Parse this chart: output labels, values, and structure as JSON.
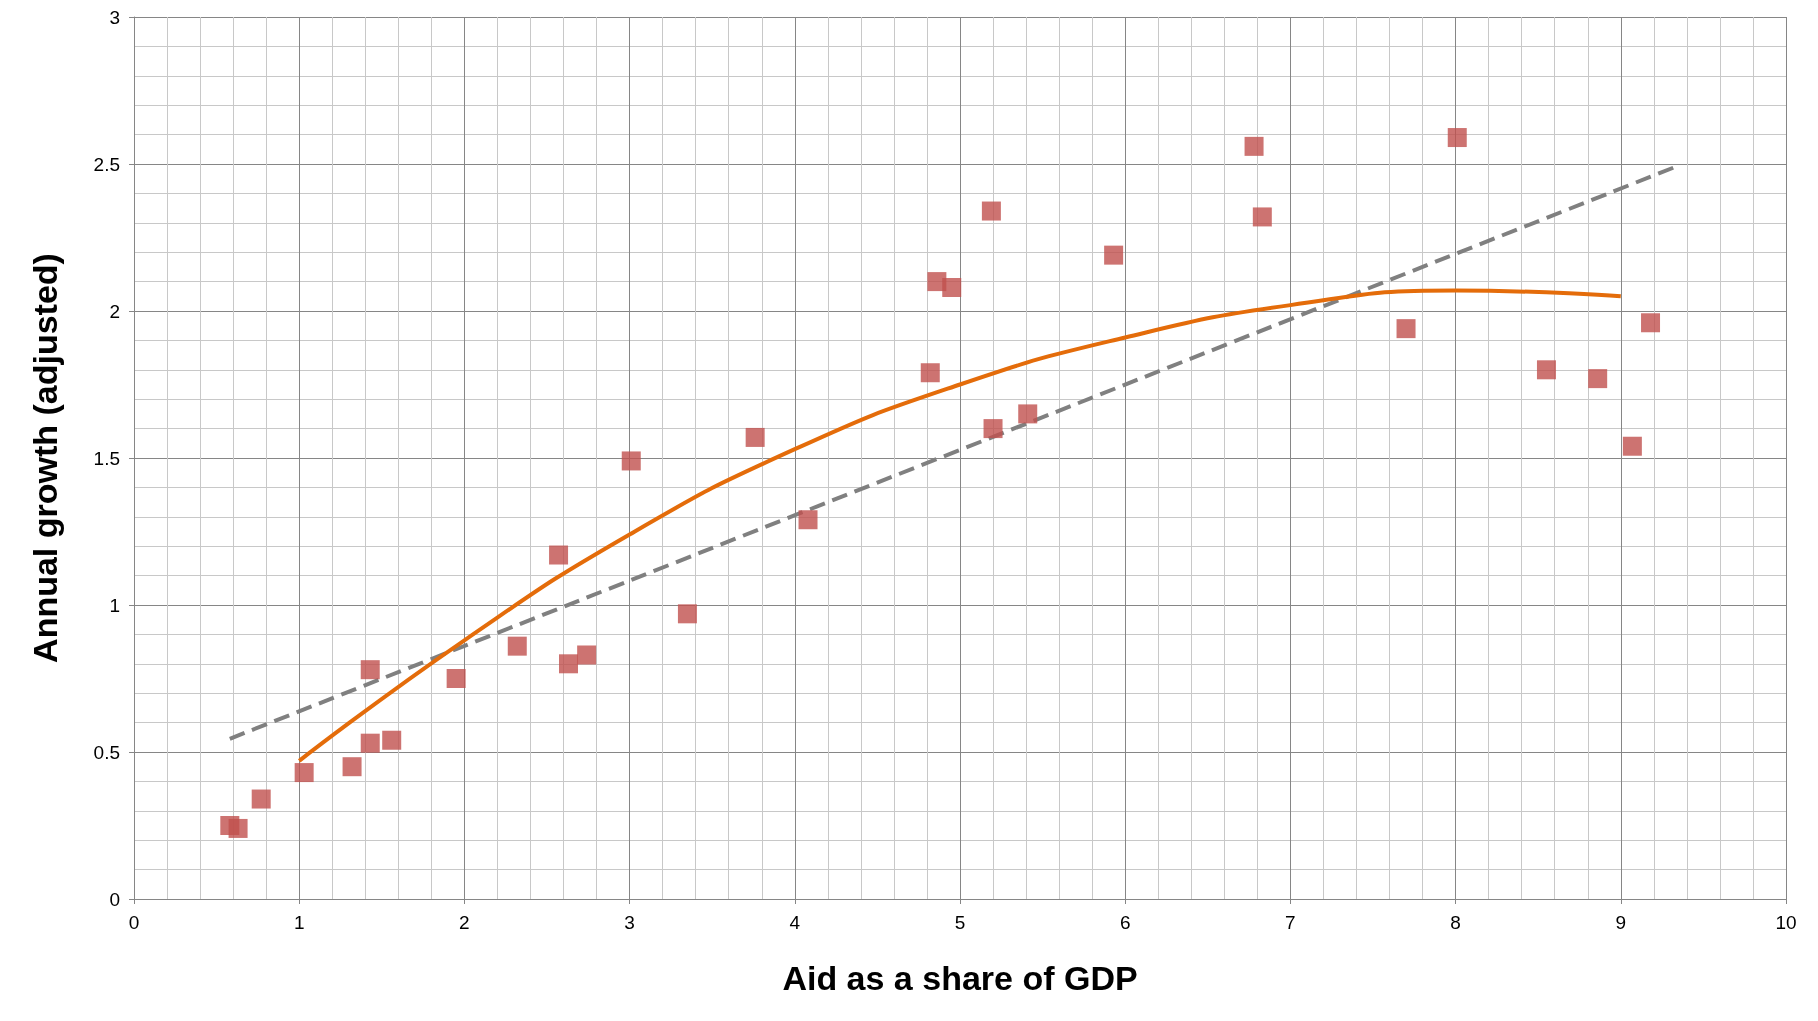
{
  "chart_data": {
    "type": "scatter",
    "xlabel": "Aid as a share of GDP",
    "ylabel": "Annual growth (adjusted)",
    "xlim": [
      0,
      10
    ],
    "xticks": [
      0,
      1,
      2,
      3,
      4,
      5,
      6,
      7,
      8,
      9,
      10
    ],
    "ylim": [
      0,
      3
    ],
    "yticks": [
      0,
      0.5,
      1,
      1.5,
      2,
      2.5,
      3
    ],
    "grid": true,
    "series": [
      {
        "marker": "square",
        "color": "#c0504d",
        "x": [
          0.58,
          0.63,
          0.77,
          1.03,
          1.32,
          1.43,
          1.43,
          1.56,
          1.95,
          2.32,
          2.57,
          2.63,
          2.74,
          3.01,
          3.35,
          3.76,
          4.08,
          4.82,
          4.86,
          4.95,
          5.19,
          5.2,
          5.41,
          5.93,
          6.78,
          6.83,
          7.7,
          8.01,
          8.55,
          8.86,
          9.07,
          9.18
        ],
        "values": [
          0.25,
          0.24,
          0.34,
          0.43,
          0.45,
          0.78,
          0.53,
          0.54,
          0.75,
          0.86,
          1.17,
          0.8,
          0.83,
          1.49,
          0.97,
          1.57,
          1.29,
          1.79,
          2.1,
          2.08,
          2.34,
          1.6,
          1.65,
          2.19,
          2.56,
          2.32,
          1.94,
          2.59,
          1.8,
          1.77,
          1.54,
          1.96
        ]
      },
      {
        "type": "line",
        "marker": "none",
        "line_style": "dashed",
        "color": "#808080",
        "x": [
          0.58,
          9.33
        ],
        "values": [
          0.545,
          2.49
        ]
      },
      {
        "type": "line",
        "marker": "none",
        "line_style": "solid",
        "color": "#e46c0a",
        "x": [
          1,
          2,
          3,
          4,
          5,
          6,
          7,
          8,
          9
        ],
        "values": [
          0.47,
          0.88,
          1.24,
          1.53,
          1.75,
          1.91,
          2.02,
          2.07,
          2.05
        ]
      }
    ]
  }
}
